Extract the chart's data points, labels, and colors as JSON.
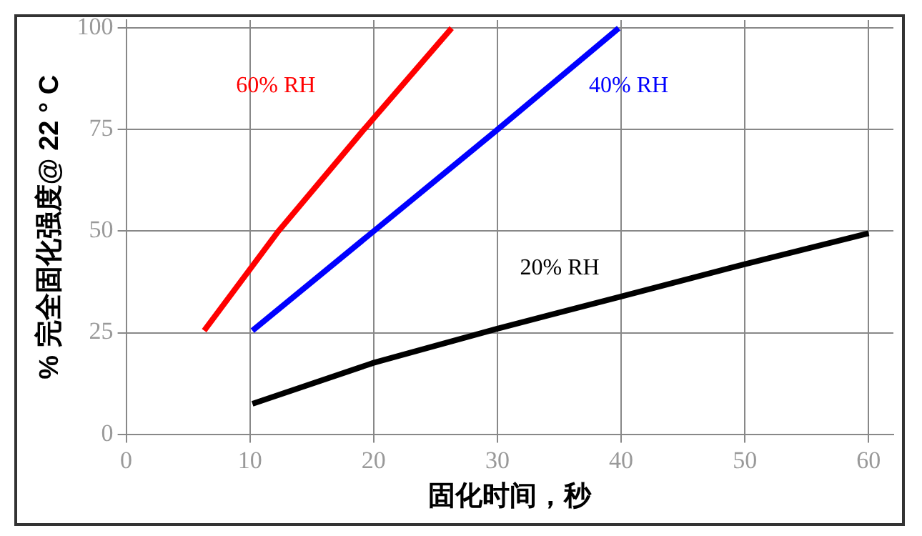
{
  "chart_data": {
    "type": "line",
    "xlabel": "固化时间，秒",
    "ylabel": "% 完全固化强度@ 22 ° C",
    "series": [
      {
        "name": "60% RH",
        "x": [
          6.3,
          12.3,
          19.2,
          26.3
        ],
        "values": [
          25.5,
          50,
          75,
          100
        ],
        "color": "#ff0000"
      },
      {
        "name": "40% RH",
        "x": [
          10.2,
          20,
          30,
          39.8
        ],
        "values": [
          25.5,
          50,
          75,
          100
        ],
        "color": "#0000ff"
      },
      {
        "name": "20% RH",
        "x": [
          10.2,
          20,
          30,
          40,
          50,
          60
        ],
        "values": [
          7.5,
          17.6,
          26,
          33.9,
          41.9,
          49.5
        ],
        "color": "#000000"
      }
    ],
    "xlim": [
      0,
      62
    ],
    "xticks": [
      0,
      10,
      20,
      30,
      40,
      50,
      60
    ],
    "ylim": [
      0,
      102
    ],
    "yticks": [
      0,
      25,
      50,
      75,
      100
    ],
    "grid": true,
    "legend": false,
    "marker": "none",
    "line_style": "solid"
  }
}
